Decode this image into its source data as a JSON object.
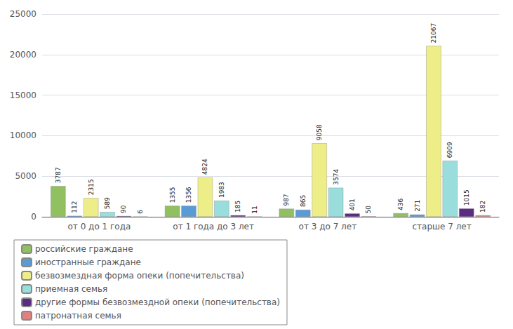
{
  "chart_data": {
    "type": "bar",
    "categories": [
      "от 0 до 1 года",
      "от 1 года до 3 лет",
      "от 3 до 7 лет",
      "старше 7 лет"
    ],
    "series": [
      {
        "name": "российские граждане",
        "color": "#90c060",
        "values": [
          3787,
          1355,
          987,
          436
        ]
      },
      {
        "name": "иностранные граждане",
        "color": "#5b9bd5",
        "values": [
          112,
          1356,
          865,
          271
        ]
      },
      {
        "name": "безвозмездная форма опеки (попечительства)",
        "color": "#eeee88",
        "values": [
          2315,
          4824,
          9058,
          21067
        ]
      },
      {
        "name": "приемная семья",
        "color": "#99dddd",
        "values": [
          589,
          1983,
          3574,
          6909
        ]
      },
      {
        "name": "другие формы безвозмездной опеки (попечительства)",
        "color": "#5a2d82",
        "values": [
          90,
          185,
          401,
          1015
        ]
      },
      {
        "name": "патронатная семья",
        "color": "#e08080",
        "values": [
          6,
          11,
          50,
          182
        ]
      }
    ],
    "ylim": [
      0,
      25000
    ],
    "yticks": [
      0,
      5000,
      10000,
      15000,
      20000,
      25000
    ],
    "grid": true,
    "legend": "lower left",
    "data_labels": true
  }
}
